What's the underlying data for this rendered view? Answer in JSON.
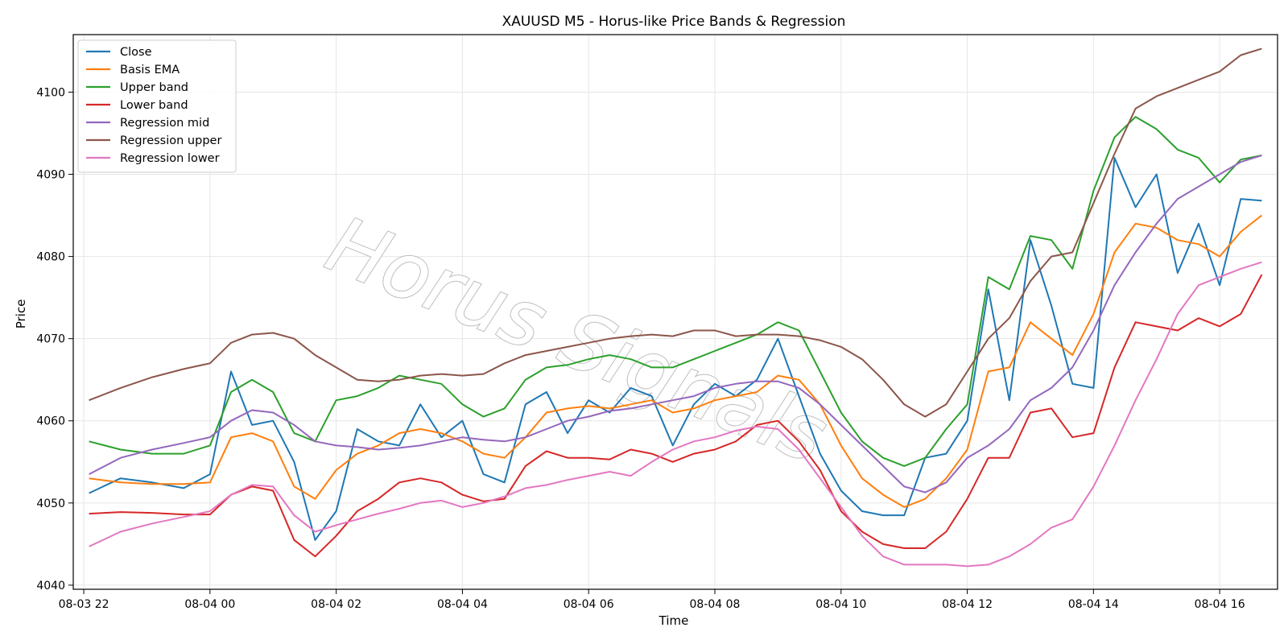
{
  "chart_data": {
    "type": "line",
    "title": "XAUUSD M5 - Horus-like Price Bands & Regression",
    "xlabel": "Time",
    "ylabel": "Price",
    "xlim": [
      "08-03 21:50",
      "08-04 16:55"
    ],
    "ylim": [
      4039.5,
      4107.0
    ],
    "x_ticks": [
      "08-03 22",
      "08-04 00",
      "08-04 02",
      "08-04 04",
      "08-04 06",
      "08-04 08",
      "08-04 10",
      "08-04 12",
      "08-04 14",
      "08-04 16"
    ],
    "y_ticks": [
      4040,
      4050,
      4060,
      4070,
      4080,
      4090,
      4100
    ],
    "grid": true,
    "legend_position": "top-left",
    "watermark": "Horus Signals",
    "x": [
      "08-03 22:05",
      "08-03 22:35",
      "08-03 23:05",
      "08-03 23:35",
      "08-04 00:00",
      "08-04 00:20",
      "08-04 00:40",
      "08-04 01:00",
      "08-04 01:20",
      "08-04 01:40",
      "08-04 02:00",
      "08-04 02:20",
      "08-04 02:40",
      "08-04 03:00",
      "08-04 03:20",
      "08-04 03:40",
      "08-04 04:00",
      "08-04 04:20",
      "08-04 04:40",
      "08-04 05:00",
      "08-04 05:20",
      "08-04 05:40",
      "08-04 06:00",
      "08-04 06:20",
      "08-04 06:40",
      "08-04 07:00",
      "08-04 07:20",
      "08-04 07:40",
      "08-04 08:00",
      "08-04 08:20",
      "08-04 08:40",
      "08-04 09:00",
      "08-04 09:20",
      "08-04 09:40",
      "08-04 10:00",
      "08-04 10:20",
      "08-04 10:40",
      "08-04 11:00",
      "08-04 11:20",
      "08-04 11:40",
      "08-04 12:00",
      "08-04 12:20",
      "08-04 12:40",
      "08-04 13:00",
      "08-04 13:20",
      "08-04 13:40",
      "08-04 14:00",
      "08-04 14:20",
      "08-04 14:40",
      "08-04 15:00",
      "08-04 15:20",
      "08-04 15:40",
      "08-04 16:00",
      "08-04 16:20",
      "08-04 16:40"
    ],
    "series": [
      {
        "name": "Close",
        "color": "#1f77b4",
        "values": [
          4051.2,
          4053.0,
          4052.5,
          4051.8,
          4053.5,
          4066.0,
          4059.5,
          4060.0,
          4055.0,
          4045.5,
          4049.0,
          4059.0,
          4057.5,
          4057.0,
          4062.0,
          4058.0,
          4060.0,
          4053.5,
          4052.5,
          4062.0,
          4063.5,
          4058.5,
          4062.5,
          4061.0,
          4064.0,
          4063.0,
          4057.0,
          4062.0,
          4064.5,
          4063.0,
          4065.0,
          4070.0,
          4063.0,
          4056.0,
          4051.5,
          4049.0,
          4048.5,
          4048.5,
          4055.5,
          4056.0,
          4060.0,
          4076.0,
          4062.5,
          4082.0,
          4074.0,
          4064.5,
          4064.0,
          4092.0,
          4086.0,
          4090.0,
          4078.0,
          4084.0,
          4076.5,
          4087.0,
          4086.8
        ]
      },
      {
        "name": "Basis EMA",
        "color": "#ff7f0e",
        "values": [
          4053.0,
          4052.5,
          4052.3,
          4052.3,
          4052.5,
          4058.0,
          4058.5,
          4057.5,
          4052.0,
          4050.5,
          4054.0,
          4056.0,
          4057.0,
          4058.5,
          4059.0,
          4058.5,
          4057.5,
          4056.0,
          4055.5,
          4058.0,
          4061.0,
          4061.5,
          4061.8,
          4061.5,
          4062.0,
          4062.5,
          4061.0,
          4061.5,
          4062.5,
          4063.0,
          4063.5,
          4065.5,
          4065.0,
          4062.0,
          4057.0,
          4053.0,
          4051.0,
          4049.5,
          4050.5,
          4053.0,
          4056.5,
          4066.0,
          4066.5,
          4072.0,
          4070.0,
          4068.0,
          4073.0,
          4080.5,
          4084.0,
          4083.5,
          4082.0,
          4081.5,
          4080.0,
          4083.0,
          4085.0
        ]
      },
      {
        "name": "Upper band",
        "color": "#2ca02c",
        "values": [
          4057.5,
          4056.5,
          4056.0,
          4056.0,
          4057.0,
          4063.5,
          4065.0,
          4063.5,
          4058.5,
          4057.5,
          4062.5,
          4063.0,
          4064.0,
          4065.5,
          4065.0,
          4064.5,
          4062.0,
          4060.5,
          4061.5,
          4065.0,
          4066.5,
          4066.8,
          4067.5,
          4068.0,
          4067.5,
          4066.5,
          4066.5,
          4067.5,
          4068.5,
          4069.5,
          4070.5,
          4072.0,
          4071.0,
          4066.0,
          4061.0,
          4057.5,
          4055.5,
          4054.5,
          4055.5,
          4059.0,
          4062.0,
          4077.5,
          4076.0,
          4082.5,
          4082.0,
          4078.5,
          4088.0,
          4094.5,
          4097.0,
          4095.5,
          4093.0,
          4092.0,
          4089.0,
          4091.8,
          4092.3
        ]
      },
      {
        "name": "Lower band",
        "color": "#d62728",
        "values": [
          4048.7,
          4048.9,
          4048.8,
          4048.6,
          4048.6,
          4051.0,
          4052.0,
          4051.5,
          4045.5,
          4043.5,
          4046.0,
          4049.0,
          4050.5,
          4052.5,
          4053.0,
          4052.5,
          4051.0,
          4050.2,
          4050.5,
          4054.5,
          4056.3,
          4055.5,
          4055.5,
          4055.3,
          4056.5,
          4056.0,
          4055.0,
          4056.0,
          4056.5,
          4057.5,
          4059.5,
          4060.0,
          4057.5,
          4054.0,
          4049.0,
          4046.5,
          4045.0,
          4044.5,
          4044.5,
          4046.5,
          4050.5,
          4055.5,
          4055.5,
          4061.0,
          4061.5,
          4058.0,
          4058.5,
          4066.5,
          4072.0,
          4071.5,
          4071.0,
          4072.5,
          4071.5,
          4073.0,
          4077.8
        ]
      },
      {
        "name": "Regression mid",
        "color": "#9467bd",
        "values": [
          4053.5,
          4055.5,
          4056.5,
          4057.3,
          4058.0,
          4060.0,
          4061.3,
          4061.0,
          4059.5,
          4057.5,
          4057.0,
          4056.8,
          4056.5,
          4056.7,
          4057.0,
          4057.5,
          4058.0,
          4057.7,
          4057.5,
          4058.0,
          4059.0,
          4060.0,
          4060.5,
          4061.2,
          4061.5,
          4062.0,
          4062.5,
          4063.0,
          4064.0,
          4064.5,
          4064.8,
          4064.8,
          4064.0,
          4062.0,
          4059.5,
          4057.0,
          4054.5,
          4052.0,
          4051.3,
          4052.5,
          4055.5,
          4057.0,
          4059.0,
          4062.5,
          4064.0,
          4066.5,
          4071.0,
          4076.5,
          4080.5,
          4084.0,
          4087.0,
          4088.5,
          4090.0,
          4091.5,
          4092.3
        ]
      },
      {
        "name": "Regression upper",
        "color": "#8c564b",
        "values": [
          4062.5,
          4064.0,
          4065.3,
          4066.3,
          4067.0,
          4069.5,
          4070.5,
          4070.7,
          4070.0,
          4068.0,
          4066.5,
          4065.0,
          4064.8,
          4065.0,
          4065.5,
          4065.7,
          4065.5,
          4065.7,
          4067.0,
          4068.0,
          4068.5,
          4069.0,
          4069.5,
          4070.0,
          4070.3,
          4070.5,
          4070.3,
          4071.0,
          4071.0,
          4070.3,
          4070.5,
          4070.5,
          4070.3,
          4069.8,
          4069.0,
          4067.5,
          4065.0,
          4062.0,
          4060.5,
          4062.0,
          4066.0,
          4070.0,
          4072.5,
          4077.0,
          4080.0,
          4080.5,
          4086.5,
          4092.5,
          4098.0,
          4099.5,
          4100.5,
          4101.5,
          4102.5,
          4104.5,
          4105.3
        ]
      },
      {
        "name": "Regression lower",
        "color": "#e377c2",
        "values": [
          4044.7,
          4046.5,
          4047.5,
          4048.3,
          4049.0,
          4051.0,
          4052.2,
          4052.0,
          4048.5,
          4046.5,
          4047.3,
          4048.0,
          4048.7,
          4049.3,
          4050.0,
          4050.3,
          4049.5,
          4050.0,
          4050.8,
          4051.8,
          4052.2,
          4052.8,
          4053.3,
          4053.8,
          4053.3,
          4055.0,
          4056.5,
          4057.5,
          4058.0,
          4058.8,
          4059.3,
          4059.0,
          4056.5,
          4053.0,
          4049.5,
          4046.0,
          4043.5,
          4042.5,
          4042.5,
          4042.5,
          4042.3,
          4042.5,
          4043.5,
          4045.0,
          4047.0,
          4048.0,
          4052.0,
          4057.0,
          4062.5,
          4067.5,
          4073.0,
          4076.5,
          4077.5,
          4078.5,
          4079.3
        ]
      }
    ]
  }
}
